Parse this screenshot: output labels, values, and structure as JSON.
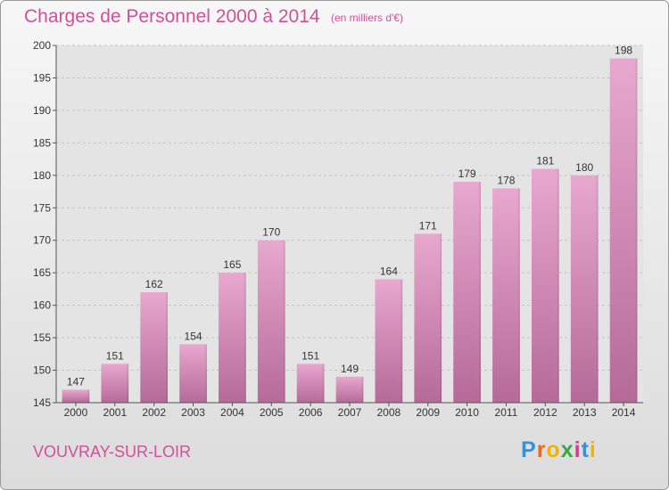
{
  "header": {
    "title": "Charges de Personnel 2000 à 2014",
    "subtitle": "(en milliers d'€)"
  },
  "footer": {
    "commune": "VOUVRAY-SUR-LOIR",
    "logo": "Proxiti"
  },
  "colors": {
    "accent": "#d0509a",
    "bar_top": "#e8a8cf",
    "bar_bottom": "#b56a98"
  },
  "chart_data": {
    "type": "bar",
    "categories": [
      "2000",
      "2001",
      "2002",
      "2003",
      "2004",
      "2005",
      "2006",
      "2007",
      "2008",
      "2009",
      "2010",
      "2011",
      "2012",
      "2013",
      "2014"
    ],
    "values": [
      147,
      151,
      162,
      154,
      165,
      170,
      151,
      149,
      164,
      171,
      179,
      178,
      181,
      180,
      198
    ],
    "ylim": [
      145,
      200
    ],
    "yticks": [
      145,
      150,
      155,
      160,
      165,
      170,
      175,
      180,
      185,
      190,
      195,
      200
    ],
    "grid": true
  }
}
